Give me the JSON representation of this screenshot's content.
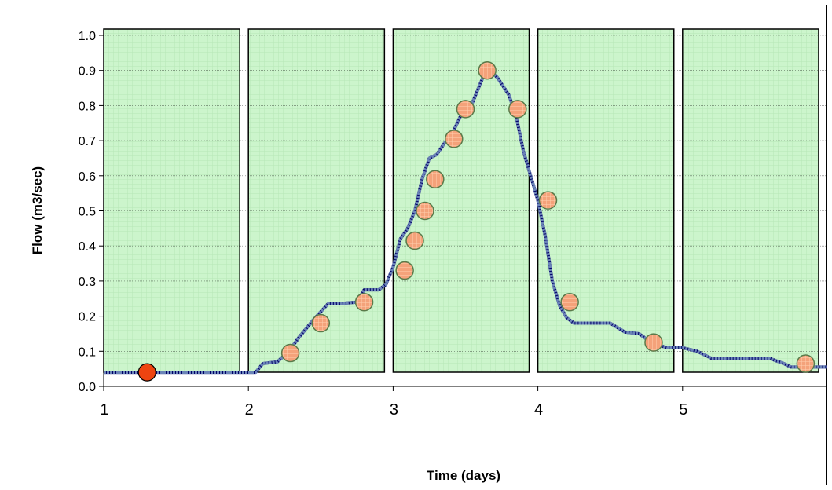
{
  "chart_data": {
    "type": "line",
    "xlabel": "Time (days)",
    "ylabel": "Flow (m3/sec)",
    "xlim": [
      1,
      6.0
    ],
    "ylim": [
      0,
      1.0
    ],
    "x_ticks": [
      1,
      2,
      3,
      4,
      5
    ],
    "y_ticks": [
      0.0,
      0.1,
      0.2,
      0.3,
      0.4,
      0.5,
      0.6,
      0.7,
      0.8,
      0.9,
      1.0
    ],
    "y_tick_labels": [
      "0.0",
      "0.1",
      "0.2",
      "0.3",
      "0.4",
      "0.5",
      "0.6",
      "0.7",
      "0.8",
      "0.9",
      "1.0"
    ],
    "grid": true,
    "legend": "none",
    "shaded_periods": [
      {
        "start": 1.0,
        "end": 1.94
      },
      {
        "start": 2.0,
        "end": 2.94
      },
      {
        "start": 3.0,
        "end": 3.94
      },
      {
        "start": 4.0,
        "end": 4.94
      },
      {
        "start": 5.0,
        "end": 5.94
      }
    ],
    "colors": {
      "period_fill": "#ccf5cc",
      "flow_line_dark": "#000066",
      "flow_line_dashed": "#6b84b8",
      "sample_marker": "#f4a27a",
      "sample_marker_outline": "#5a7a4a",
      "first_marker": "#ee4411"
    },
    "series": [
      {
        "x": [
          1.0,
          2.05,
          2.1,
          2.2,
          2.28,
          2.35,
          2.45,
          2.55,
          2.6,
          2.75,
          2.8,
          2.9,
          2.95,
          3.0,
          3.05,
          3.1,
          3.15,
          3.2,
          3.25,
          3.3,
          3.35,
          3.42,
          3.5,
          3.55,
          3.62,
          3.67,
          3.72,
          3.8,
          3.85,
          3.9,
          4.0,
          4.05,
          4.1,
          4.15,
          4.2,
          4.25,
          4.35,
          4.5,
          4.6,
          4.7,
          4.8,
          4.9,
          5.0,
          5.1,
          5.2,
          5.3,
          5.6,
          5.7,
          5.75,
          5.9,
          6.0
        ],
        "y": [
          0.04,
          0.04,
          0.065,
          0.07,
          0.1,
          0.14,
          0.19,
          0.235,
          0.235,
          0.24,
          0.275,
          0.275,
          0.29,
          0.34,
          0.42,
          0.45,
          0.5,
          0.59,
          0.65,
          0.66,
          0.69,
          0.73,
          0.8,
          0.81,
          0.88,
          0.9,
          0.88,
          0.83,
          0.77,
          0.67,
          0.53,
          0.43,
          0.3,
          0.23,
          0.195,
          0.18,
          0.18,
          0.18,
          0.155,
          0.15,
          0.12,
          0.11,
          0.11,
          0.1,
          0.08,
          0.08,
          0.08,
          0.065,
          0.055,
          0.055,
          0.055
        ]
      },
      {
        "x": [
          1.3,
          2.29,
          2.5,
          2.8,
          3.08,
          3.15,
          3.22,
          3.29,
          3.42,
          3.5,
          3.65,
          3.86,
          4.07,
          4.22,
          4.8,
          5.85
        ],
        "y": [
          0.04,
          0.095,
          0.18,
          0.24,
          0.33,
          0.415,
          0.5,
          0.59,
          0.705,
          0.79,
          0.9,
          0.79,
          0.53,
          0.24,
          0.125,
          0.065
        ]
      }
    ]
  }
}
